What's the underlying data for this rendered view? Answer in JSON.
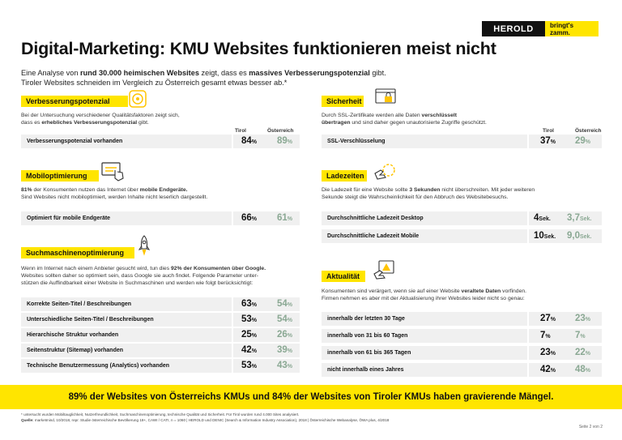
{
  "brand": {
    "name": "HEROLD",
    "tagline": "bringt's zamm."
  },
  "title": "Digital-Marketing: KMU Websites funktionieren meist nicht",
  "intro": {
    "p1": "Eine Analyse von ",
    "b1": "rund 30.000 heimischen Websites",
    "p2": " zeigt, dass es ",
    "b2": "massives Verbesserungspotenzial",
    "p3": " gibt.",
    "line2": "Tiroler Websites schneiden im Vergleich zu Österreich gesamt etwas besser ab.*"
  },
  "col_headers": {
    "tirol": "Tirol",
    "oesterreich": "Österreich"
  },
  "sections": {
    "verbesserung": {
      "title": "Verbesserungspotenzial",
      "text1": "Bei der Untersuchung verschiedener Qualitätsfaktoren zeigt sich,",
      "text2a": "dass es ",
      "text2b": "erhebliches Verbesserungspotenzial",
      "text2c": " gibt.",
      "rows": [
        {
          "label": "Verbesserungspotenzial vorhanden",
          "tirol": "84",
          "at": "89",
          "unit": "%"
        }
      ]
    },
    "mobil": {
      "title": "Mobiloptimierung",
      "text1a": "81% ",
      "text1b": "der Konsumenten nutzen das Internet über ",
      "text1c": "mobile Endgeräte.",
      "text2": "Sind Websites nicht mobiloptimiert, werden Inhalte nicht leserlich dargestellt.",
      "rows": [
        {
          "label": "Optimiert für mobile Endgeräte",
          "tirol": "66",
          "at": "61",
          "unit": "%"
        }
      ]
    },
    "seo": {
      "title": "Suchmaschinenoptimierung",
      "text1a": "Wenn im Internet nach einem Anbieter gesucht wird, tun dies ",
      "text1b": "92% der Konsumenten über Google.",
      "text2": "Websites sollten daher so optimiert sein, dass Google sie auch findet. Folgende Parameter unter-",
      "text3": "stützen die Auffindbarkeit einer Website in Suchmaschinen und werden wie folgt berücksichtigt:",
      "rows": [
        {
          "label": "Korrekte Seiten-Titel / Beschreibungen",
          "tirol": "63",
          "at": "54",
          "unit": "%"
        },
        {
          "label": "Unterschiedliche Seiten-Titel / Beschreibungen",
          "tirol": "53",
          "at": "54",
          "unit": "%"
        },
        {
          "label": "Hierarchische Struktur vorhanden",
          "tirol": "25",
          "at": "26",
          "unit": "%"
        },
        {
          "label": "Seitenstruktur (Sitemap) vorhanden",
          "tirol": "42",
          "at": "39",
          "unit": "%"
        },
        {
          "label": "Technische Benutzermessung (Analytics) vorhanden",
          "tirol": "53",
          "at": "43",
          "unit": "%"
        }
      ]
    },
    "sicherheit": {
      "title": "Sicherheit",
      "text1a": "Durch SSL-Zertifikate werden alle Daten ",
      "text1b": "verschlüsselt",
      "text2a": "übertragen",
      "text2b": " und sind daher gegen unautorisierte Zugriffe geschützt.",
      "rows": [
        {
          "label": "SSL-Verschlüsselung",
          "tirol": "37",
          "at": "29",
          "unit": "%"
        }
      ]
    },
    "ladezeiten": {
      "title": "Ladezeiten",
      "text1a": "Die Ladezeit für eine Website sollte ",
      "text1b": "3 Sekunden",
      "text1c": " nicht überschreiten. Mit jeder weiteren",
      "text2": "Sekunde steigt die Wahrscheinlichkeit für den Abbruch des Websitebesuchs.",
      "rows": [
        {
          "label": "Durchschnittliche Ladezeit Desktop",
          "tirol": "4",
          "at": "3,7",
          "unit": "Sek."
        },
        {
          "label": "Durchschnittliche Ladezeit Mobile",
          "tirol": "10",
          "at": "9,0",
          "unit": "Sek."
        }
      ]
    },
    "aktualitaet": {
      "title": "Aktualität",
      "text1a": "Konsumenten sind verärgert, wenn sie auf einer Website ",
      "text1b": "veraltete Daten",
      "text1c": " vorfinden.",
      "text2": "Firmen nehmen es aber mit der Aktualisierung ihrer Websites leider nicht so genau:",
      "rows": [
        {
          "label": "innerhalb der letzten 30 Tage",
          "tirol": "27",
          "at": "23",
          "unit": "%"
        },
        {
          "label": "innerhalb von 31 bis 60 Tagen",
          "tirol": "7",
          "at": "7",
          "unit": "%"
        },
        {
          "label": "innerhalb von 61 bis 365 Tagen",
          "tirol": "23",
          "at": "22",
          "unit": "%"
        },
        {
          "label": "nicht innerhalb eines Jahres",
          "tirol": "42",
          "at": "48",
          "unit": "%"
        }
      ]
    }
  },
  "banner": "89% der Websites von Österreichs KMUs und 84% der Websites von Tiroler KMUs haben gravierende Mängel.",
  "footnote": "* untersucht wurden Mobiltauglichkeit, Nutzerfreundlichkeit, Suchmaschinenoptimierung, technische Qualität und Sicherheit. Für Tirol wurden rund 4.000 Sites analysiert.",
  "source_label": "Quelle:",
  "source": " marketmind, 10/2018, repr. Studie österreichische Bevölkerung 18+, CAWI / CATI, n = 1060 | HEROLD und DENIC (Search & Information Industry Association), 2018 | Österreichische Webanalyse, ÖWA plus, 4/2018",
  "page": "Seite 2 von 2",
  "colors": {
    "accent": "#ffe500",
    "austria_value": "#8aa893",
    "row_bg": "#f0f0f0"
  },
  "icons": [
    "target-icon",
    "touch-screen-icon",
    "rocket-icon",
    "browser-lock-icon",
    "loading-hand-icon",
    "warning-hand-icon"
  ]
}
